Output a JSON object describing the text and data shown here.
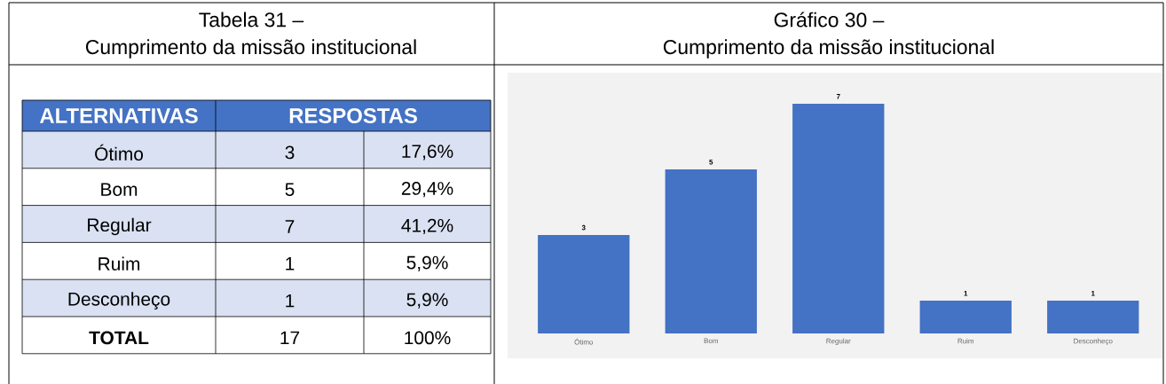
{
  "chart_data": [
    {
      "type": "other",
      "title": "Tabela 31 –",
      "subtitle": "Cumprimento da missão institucional",
      "annotations": [
        "ALTERNATIVAS",
        "RESPOSTAS",
        "Ótimo",
        "3",
        "17,6%",
        "Bom",
        "5",
        "29,4%",
        "Regular",
        "7",
        "41,2%",
        "Ruim",
        "1",
        "5,9%",
        "Desconheço",
        "1",
        "5,9%",
        "TOTAL",
        "17",
        "100%"
      ]
    },
    {
      "type": "bar",
      "title": "Gráfico 30 –",
      "subtitle": "Cumprimento da missão institucional",
      "categories": [
        "Ótimo",
        "Bom",
        "Regular",
        "Ruim",
        "Desconheço"
      ],
      "values": [
        3,
        5,
        7,
        1,
        1
      ],
      "color": "#4472c4",
      "data_labels": true
    }
  ]
}
